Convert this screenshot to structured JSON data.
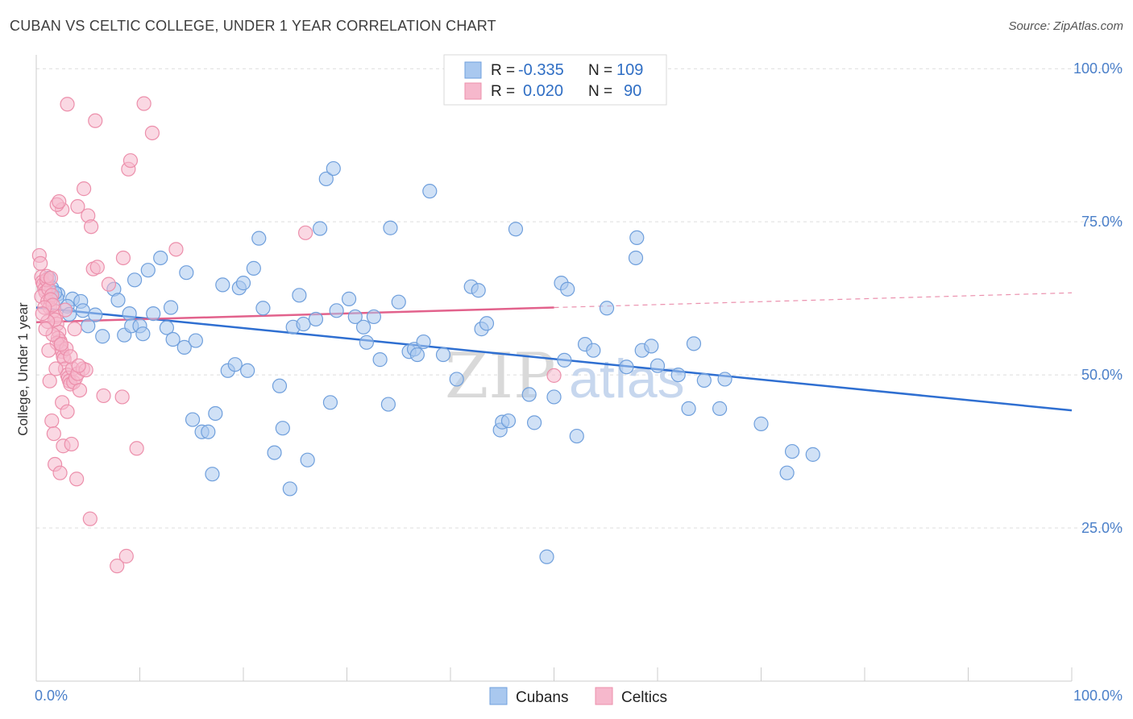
{
  "title": "CUBAN VS CELTIC COLLEGE, UNDER 1 YEAR CORRELATION CHART",
  "source": "Source: ZipAtlas.com",
  "watermark": {
    "zip": "ZIP",
    "atlas": "atlas"
  },
  "colors": {
    "cubans_fill": "#a9c8ef",
    "cubans_stroke": "#6f9fdc",
    "cubans_line": "#2f6fd1",
    "celtics_fill": "#f6b8cc",
    "celtics_stroke": "#ec8fab",
    "celtics_line": "#e2628c",
    "value_text": "#2f6ec4",
    "grid": "#dddddd"
  },
  "stats_legend": [
    {
      "r_label": "R = ",
      "r_value": "-0.335",
      "n_label": "N = ",
      "n_value": "109"
    },
    {
      "r_label": "R = ",
      "r_value": "0.020",
      "n_label": "N = ",
      "n_value": "90"
    }
  ],
  "chart_data": {
    "type": "scatter",
    "title": "CUBAN VS CELTIC COLLEGE, UNDER 1 YEAR CORRELATION CHART",
    "xlabel": "",
    "ylabel": "College, Under 1 year",
    "xlim": [
      0,
      100
    ],
    "ylim": [
      0,
      102
    ],
    "x_tick_labels": [
      "0.0%",
      "100.0%"
    ],
    "y_ticks": [
      25,
      50,
      75,
      100
    ],
    "y_tick_labels": [
      "25.0%",
      "50.0%",
      "75.0%",
      "100.0%"
    ],
    "grid": true,
    "legend_position": "bottom-center",
    "series": [
      {
        "name": "Cubans",
        "color": "#6f9fdc",
        "points": [
          [
            1.2,
            65.8
          ],
          [
            1.5,
            64.2
          ],
          [
            2.1,
            63.2
          ],
          [
            3.5,
            62.4
          ],
          [
            3.0,
            61.2
          ],
          [
            4.3,
            62.0
          ],
          [
            4.5,
            60.5
          ],
          [
            5.7,
            59.8
          ],
          [
            6.4,
            56.3
          ],
          [
            7.5,
            64.0
          ],
          [
            7.9,
            62.2
          ],
          [
            8.5,
            56.5
          ],
          [
            9.0,
            60.0
          ],
          [
            9.2,
            58.0
          ],
          [
            9.5,
            65.5
          ],
          [
            10.0,
            58.0
          ],
          [
            10.3,
            56.7
          ],
          [
            10.8,
            67.1
          ],
          [
            11.3,
            60.0
          ],
          [
            12.0,
            69.1
          ],
          [
            12.6,
            57.7
          ],
          [
            13.0,
            61.0
          ],
          [
            13.2,
            55.8
          ],
          [
            14.3,
            54.5
          ],
          [
            14.5,
            66.7
          ],
          [
            15.4,
            55.6
          ],
          [
            15.1,
            42.7
          ],
          [
            16.0,
            40.7
          ],
          [
            16.6,
            40.7
          ],
          [
            17.0,
            33.8
          ],
          [
            17.3,
            43.7
          ],
          [
            18.0,
            64.7
          ],
          [
            18.5,
            50.7
          ],
          [
            19.2,
            51.7
          ],
          [
            19.6,
            64.2
          ],
          [
            20.0,
            65.0
          ],
          [
            20.4,
            50.7
          ],
          [
            21.0,
            67.4
          ],
          [
            21.5,
            72.3
          ],
          [
            21.9,
            60.9
          ],
          [
            23.0,
            37.3
          ],
          [
            23.5,
            48.2
          ],
          [
            23.8,
            41.3
          ],
          [
            24.5,
            31.4
          ],
          [
            24.8,
            57.8
          ],
          [
            25.4,
            63.0
          ],
          [
            25.8,
            58.3
          ],
          [
            26.2,
            36.1
          ],
          [
            27.0,
            59.1
          ],
          [
            27.4,
            73.9
          ],
          [
            28.0,
            82.0
          ],
          [
            28.4,
            45.5
          ],
          [
            28.7,
            83.7
          ],
          [
            29.0,
            60.5
          ],
          [
            30.2,
            62.4
          ],
          [
            30.8,
            59.5
          ],
          [
            31.6,
            57.8
          ],
          [
            31.9,
            55.3
          ],
          [
            32.6,
            59.5
          ],
          [
            33.2,
            52.5
          ],
          [
            34.0,
            45.2
          ],
          [
            34.2,
            74.0
          ],
          [
            35.0,
            61.9
          ],
          [
            36.0,
            53.8
          ],
          [
            36.5,
            54.2
          ],
          [
            36.8,
            53.3
          ],
          [
            37.4,
            55.4
          ],
          [
            38.0,
            80.0
          ],
          [
            39.3,
            53.3
          ],
          [
            40.6,
            49.3
          ],
          [
            42.0,
            64.4
          ],
          [
            42.7,
            63.8
          ],
          [
            43.0,
            57.5
          ],
          [
            43.5,
            58.4
          ],
          [
            44.8,
            41.0
          ],
          [
            45.0,
            42.3
          ],
          [
            45.6,
            42.5
          ],
          [
            46.3,
            73.8
          ],
          [
            47.6,
            46.8
          ],
          [
            48.1,
            42.2
          ],
          [
            49.3,
            20.3
          ],
          [
            50.0,
            46.4
          ],
          [
            50.7,
            65.0
          ],
          [
            51.0,
            52.4
          ],
          [
            51.3,
            64.0
          ],
          [
            52.2,
            40.0
          ],
          [
            53.0,
            55.0
          ],
          [
            53.8,
            54.0
          ],
          [
            55.1,
            60.9
          ],
          [
            57.0,
            51.3
          ],
          [
            57.9,
            69.1
          ],
          [
            58.0,
            72.4
          ],
          [
            58.5,
            54.0
          ],
          [
            59.4,
            54.7
          ],
          [
            60.0,
            51.5
          ],
          [
            62.0,
            50.0
          ],
          [
            63.0,
            44.5
          ],
          [
            63.5,
            55.1
          ],
          [
            64.5,
            49.1
          ],
          [
            66.0,
            44.5
          ],
          [
            66.5,
            49.3
          ],
          [
            70.0,
            42.0
          ],
          [
            72.5,
            34.0
          ],
          [
            73.0,
            37.5
          ],
          [
            75.0,
            37.0
          ],
          [
            2.0,
            62.5
          ],
          [
            3.2,
            59.9
          ],
          [
            1.8,
            63.4
          ],
          [
            5.0,
            58.0
          ]
        ]
      },
      {
        "name": "Celtics",
        "color": "#ec8fab",
        "points": [
          [
            0.3,
            69.5
          ],
          [
            0.4,
            68.2
          ],
          [
            0.5,
            66.0
          ],
          [
            0.6,
            65.2
          ],
          [
            0.7,
            64.8
          ],
          [
            0.8,
            64.0
          ],
          [
            0.9,
            63.5
          ],
          [
            0.5,
            62.8
          ],
          [
            1.0,
            65.5
          ],
          [
            1.2,
            64.0
          ],
          [
            1.1,
            62.0
          ],
          [
            1.3,
            61.0
          ],
          [
            1.5,
            63.0
          ],
          [
            1.7,
            60.5
          ],
          [
            1.9,
            59.5
          ],
          [
            2.0,
            58.3
          ],
          [
            2.2,
            57.0
          ],
          [
            2.3,
            55.5
          ],
          [
            2.4,
            54.4
          ],
          [
            2.5,
            53.8
          ],
          [
            2.6,
            53.0
          ],
          [
            2.7,
            52.6
          ],
          [
            2.8,
            51.0
          ],
          [
            3.0,
            50.0
          ],
          [
            3.1,
            49.5
          ],
          [
            3.2,
            49.0
          ],
          [
            3.3,
            48.5
          ],
          [
            3.5,
            51.0
          ],
          [
            3.6,
            48.8
          ],
          [
            3.8,
            49.5
          ],
          [
            4.0,
            50.2
          ],
          [
            4.2,
            47.5
          ],
          [
            1.4,
            62.3
          ],
          [
            1.6,
            61.4
          ],
          [
            1.8,
            59.0
          ],
          [
            2.1,
            56.0
          ],
          [
            2.0,
            55.2
          ],
          [
            2.9,
            54.3
          ],
          [
            1.3,
            49.0
          ],
          [
            1.5,
            42.5
          ],
          [
            1.7,
            40.4
          ],
          [
            1.8,
            35.4
          ],
          [
            2.3,
            34.0
          ],
          [
            2.5,
            45.5
          ],
          [
            2.6,
            38.4
          ],
          [
            3.0,
            44.0
          ],
          [
            3.4,
            38.7
          ],
          [
            3.9,
            33.0
          ],
          [
            4.5,
            51.0
          ],
          [
            4.6,
            80.4
          ],
          [
            5.0,
            76.0
          ],
          [
            5.3,
            74.2
          ],
          [
            5.5,
            67.3
          ],
          [
            5.7,
            91.5
          ],
          [
            5.9,
            67.6
          ],
          [
            6.5,
            46.6
          ],
          [
            7.0,
            64.8
          ],
          [
            7.8,
            18.8
          ],
          [
            8.3,
            46.4
          ],
          [
            8.4,
            69.1
          ],
          [
            8.7,
            20.4
          ],
          [
            8.9,
            83.6
          ],
          [
            9.1,
            85.0
          ],
          [
            9.7,
            38.0
          ],
          [
            10.4,
            94.3
          ],
          [
            11.2,
            89.5
          ],
          [
            13.5,
            70.5
          ],
          [
            2.5,
            77.0
          ],
          [
            2.0,
            77.8
          ],
          [
            2.2,
            78.3
          ],
          [
            3.0,
            94.2
          ],
          [
            4.0,
            77.5
          ],
          [
            1.0,
            66.1
          ],
          [
            1.4,
            65.8
          ],
          [
            2.8,
            60.6
          ],
          [
            3.7,
            57.5
          ],
          [
            4.8,
            50.8
          ],
          [
            5.2,
            26.5
          ],
          [
            26.0,
            73.2
          ],
          [
            50.0,
            49.9
          ],
          [
            0.8,
            61.0
          ],
          [
            1.1,
            58.7
          ],
          [
            1.6,
            56.6
          ],
          [
            2.4,
            55.0
          ],
          [
            3.3,
            53.0
          ],
          [
            4.1,
            51.5
          ],
          [
            0.6,
            60.0
          ],
          [
            0.9,
            57.5
          ],
          [
            1.2,
            54.0
          ],
          [
            1.9,
            51.0
          ]
        ]
      }
    ],
    "trend_lines": [
      {
        "series": "Cubans",
        "x": [
          0,
          100
        ],
        "y": [
          61.0,
          44.2
        ],
        "dashed_from": null
      },
      {
        "series": "Celtics",
        "x": [
          0,
          100
        ],
        "y": [
          58.6,
          63.4
        ],
        "solid_until": 50
      }
    ]
  }
}
